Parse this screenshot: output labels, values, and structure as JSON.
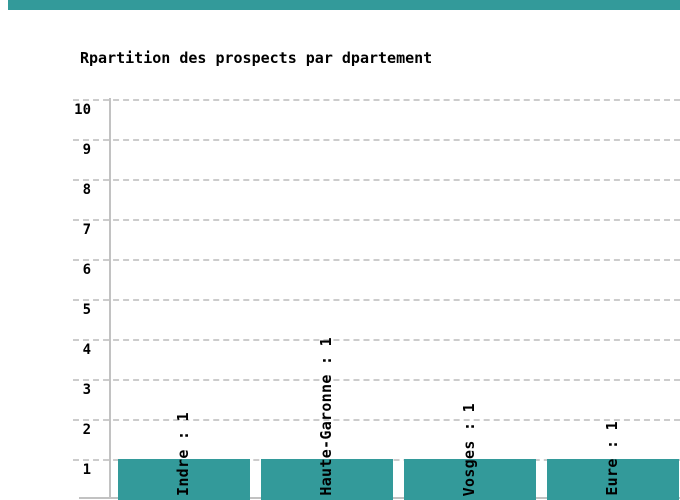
{
  "chart_data": {
    "type": "bar",
    "title": "Rpartition des prospects par dpartement",
    "categories": [
      "Indre",
      "Haute-Garonne",
      "Vosges",
      "Eure"
    ],
    "values": [
      1,
      1,
      1,
      1
    ],
    "bar_labels": [
      "Indre : 1",
      "Haute-Garonne : 1",
      "Vosges : 1",
      "Eure : 1"
    ],
    "y_ticks": [
      10,
      9,
      8,
      7,
      6,
      5,
      4,
      3,
      2,
      1
    ],
    "ylim_visible": [
      0,
      10
    ],
    "xlabel": "",
    "ylabel": "",
    "legend": null,
    "grid": "horizontal-dashed",
    "bars_clipped_at_bottom": true
  },
  "colors": {
    "bar": "#339a9a",
    "grid": "#cccccc",
    "axis": "#c2c2c2",
    "text": "#000000",
    "background": "#ffffff"
  }
}
